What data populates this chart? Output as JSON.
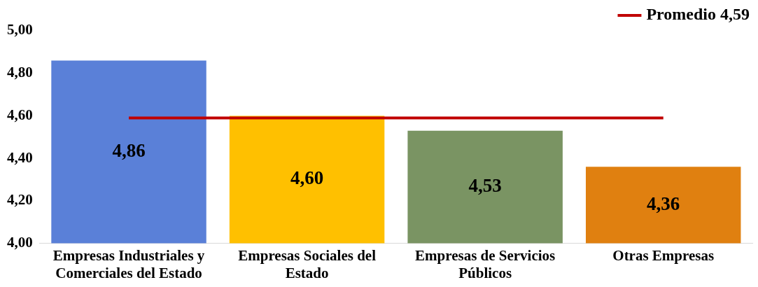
{
  "chart_data": {
    "type": "bar",
    "categories": [
      "Empresas Industriales y Comerciales del Estado",
      "Empresas Sociales del Estado",
      "Empresas de Servicios Públicos",
      "Otras Empresas"
    ],
    "series": [
      {
        "colors": [
          "#5a80d8",
          "#ffc000",
          "#7a9463",
          "#e08010"
        ],
        "values": [
          4.86,
          4.6,
          4.53,
          4.36
        ],
        "value_labels": [
          "4,86",
          "4,60",
          "4,53",
          "4,36"
        ]
      },
      {
        "type": "line",
        "name": "Promedio 4,59",
        "color": "#c00000",
        "values": [
          4.59,
          4.59,
          4.59,
          4.59
        ]
      }
    ],
    "ylim": [
      4.0,
      5.0
    ],
    "yticks": [
      {
        "value": 4.0,
        "label": "4,00"
      },
      {
        "value": 4.2,
        "label": "4,20"
      },
      {
        "value": 4.4,
        "label": "4,40"
      },
      {
        "value": 4.6,
        "label": "4,60"
      },
      {
        "value": 4.8,
        "label": "4,80"
      },
      {
        "value": 5.0,
        "label": "5,00"
      }
    ],
    "grid": false,
    "legend": "top right",
    "marker": "none",
    "line_style": "solid"
  }
}
